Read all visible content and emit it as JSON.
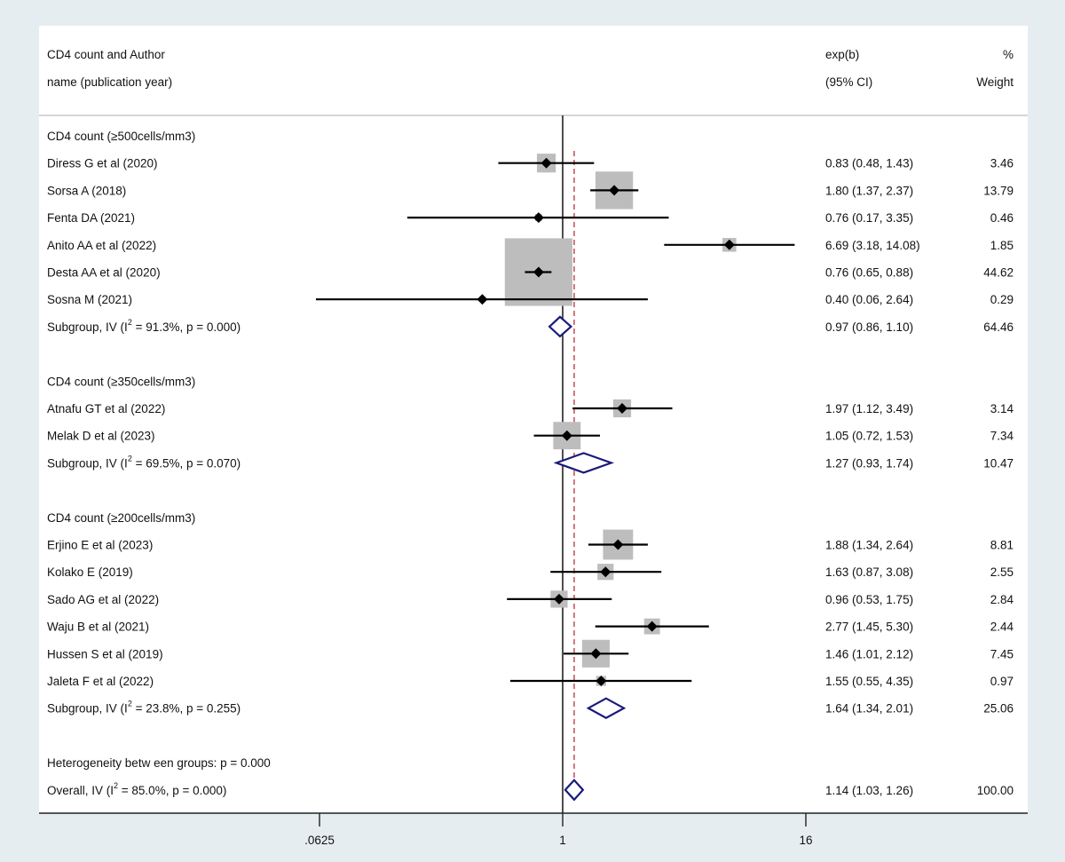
{
  "header": {
    "study_col_line1": "CD4 count and Author",
    "study_col_line2": "name (publication year)",
    "effect_col_line1": "exp(b)",
    "effect_col_line2": "(95% CI)",
    "weight_col_line1": "%",
    "weight_col_line2": "Weight"
  },
  "chart_data": {
    "type": "forest",
    "scale": "log2",
    "x_ticks": [
      {
        "value": 0.0625,
        "label": ".0625"
      },
      {
        "value": 1,
        "label": "1"
      },
      {
        "value": 16,
        "label": "16"
      }
    ],
    "null_line": 1,
    "overall_line": 1.14,
    "rows": [
      {
        "kind": "group",
        "label": "CD4 count (≥500cells/mm3)"
      },
      {
        "kind": "study",
        "label": "Diress G et al (2020)",
        "est": 0.83,
        "lo": 0.48,
        "hi": 1.43,
        "ci_text": "0.83 (0.48, 1.43)",
        "weight": "3.46"
      },
      {
        "kind": "study",
        "label": "Sorsa A  (2018)",
        "est": 1.8,
        "lo": 1.37,
        "hi": 2.37,
        "ci_text": "1.80 (1.37, 2.37)",
        "weight": "13.79"
      },
      {
        "kind": "study",
        "label": "Fenta DA (2021)",
        "est": 0.76,
        "lo": 0.17,
        "hi": 3.35,
        "ci_text": "0.76 (0.17, 3.35)",
        "weight": "0.46"
      },
      {
        "kind": "study",
        "label": "Anito AA et al (2022)",
        "est": 6.69,
        "lo": 3.18,
        "hi": 14.08,
        "ci_text": "6.69 (3.18, 14.08)",
        "weight": "1.85"
      },
      {
        "kind": "study",
        "label": "Desta AA et al (2020)",
        "est": 0.76,
        "lo": 0.65,
        "hi": 0.88,
        "ci_text": "0.76 (0.65, 0.88)",
        "weight": "44.62"
      },
      {
        "kind": "study",
        "label": "Sosna M (2021)",
        "est": 0.4,
        "lo": 0.06,
        "hi": 2.64,
        "ci_text": "0.40 (0.06, 2.64)",
        "weight": "0.29"
      },
      {
        "kind": "subtotal",
        "label_pre": "Subgroup, IV (I",
        "label_sup": "2",
        "label_post": " = 91.3%, p = 0.000)",
        "est": 0.97,
        "lo": 0.86,
        "hi": 1.1,
        "ci_text": "0.97 (0.86, 1.10)",
        "weight": "64.46"
      },
      {
        "kind": "blank"
      },
      {
        "kind": "group",
        "label": "CD4 count (≥350cells/mm3)"
      },
      {
        "kind": "study",
        "label": "Atnafu GT et al (2022)",
        "est": 1.97,
        "lo": 1.12,
        "hi": 3.49,
        "ci_text": "1.97 (1.12, 3.49)",
        "weight": "3.14"
      },
      {
        "kind": "study",
        "label": "Melak D et al (2023)",
        "est": 1.05,
        "lo": 0.72,
        "hi": 1.53,
        "ci_text": "1.05 (0.72, 1.53)",
        "weight": "7.34"
      },
      {
        "kind": "subtotal",
        "label_pre": "Subgroup, IV (I",
        "label_sup": "2",
        "label_post": " = 69.5%, p = 0.070)",
        "est": 1.27,
        "lo": 0.93,
        "hi": 1.74,
        "ci_text": "1.27 (0.93, 1.74)",
        "weight": "10.47"
      },
      {
        "kind": "blank"
      },
      {
        "kind": "group",
        "label": "CD4 count (≥200cells/mm3)"
      },
      {
        "kind": "study",
        "label": "Erjino E et al (2023)",
        "est": 1.88,
        "lo": 1.34,
        "hi": 2.64,
        "ci_text": "1.88 (1.34, 2.64)",
        "weight": "8.81"
      },
      {
        "kind": "study",
        "label": "Kolako E (2019)",
        "est": 1.63,
        "lo": 0.87,
        "hi": 3.08,
        "ci_text": "1.63 (0.87, 3.08)",
        "weight": "2.55"
      },
      {
        "kind": "study",
        "label": "Sado AG et al (2022)",
        "est": 0.96,
        "lo": 0.53,
        "hi": 1.75,
        "ci_text": "0.96 (0.53, 1.75)",
        "weight": "2.84"
      },
      {
        "kind": "study",
        "label": "Waju B et al (2021)",
        "est": 2.77,
        "lo": 1.45,
        "hi": 5.3,
        "ci_text": "2.77 (1.45, 5.30)",
        "weight": "2.44"
      },
      {
        "kind": "study",
        "label": "Hussen S et al (2019)",
        "est": 1.46,
        "lo": 1.01,
        "hi": 2.12,
        "ci_text": "1.46 (1.01, 2.12)",
        "weight": "7.45"
      },
      {
        "kind": "study",
        "label": "Jaleta F et al (2022)",
        "est": 1.55,
        "lo": 0.55,
        "hi": 4.35,
        "ci_text": "1.55 (0.55, 4.35)",
        "weight": "0.97"
      },
      {
        "kind": "subtotal",
        "label_pre": "Subgroup, IV (I",
        "label_sup": "2",
        "label_post": " = 23.8%, p = 0.255)",
        "est": 1.64,
        "lo": 1.34,
        "hi": 2.01,
        "ci_text": "1.64 (1.34, 2.01)",
        "weight": "25.06"
      },
      {
        "kind": "blank"
      },
      {
        "kind": "note",
        "label": "Heterogeneity betw een groups: p = 0.000"
      },
      {
        "kind": "overall",
        "label_pre": "Overall, IV (I",
        "label_sup": "2",
        "label_post": " = 85.0%, p = 0.000)",
        "est": 1.14,
        "lo": 1.03,
        "hi": 1.26,
        "ci_text": "1.14 (1.03, 1.26)",
        "weight": "100.00"
      }
    ]
  }
}
